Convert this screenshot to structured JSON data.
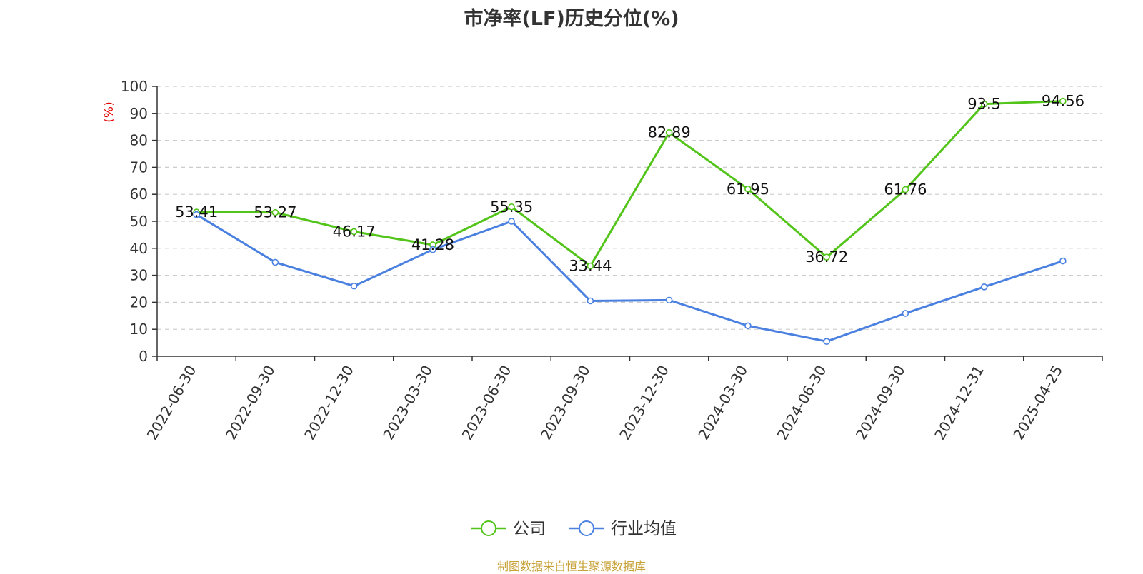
{
  "chart_data": {
    "type": "line",
    "title": "市净率(LF)历史分位(%)",
    "ylabel": "(%)",
    "ylim": [
      0,
      100
    ],
    "yticks": [
      0,
      10,
      20,
      30,
      40,
      50,
      60,
      70,
      80,
      90,
      100
    ],
    "grid": true,
    "legend_position": "bottom-center",
    "categories": [
      "2022-06-30",
      "2022-09-30",
      "2022-12-30",
      "2023-03-30",
      "2023-06-30",
      "2023-09-30",
      "2023-12-30",
      "2024-03-30",
      "2024-06-30",
      "2024-09-30",
      "2024-12-31",
      "2025-04-25"
    ],
    "series": [
      {
        "name": "公司",
        "color": "#52c41a",
        "show_labels": true,
        "values": [
          53.41,
          53.27,
          46.17,
          41.28,
          55.35,
          33.44,
          82.89,
          61.95,
          36.72,
          61.76,
          93.5,
          94.56
        ]
      },
      {
        "name": "行业均值",
        "color": "#4a80e0",
        "show_labels": false,
        "values": [
          52.5,
          34.8,
          26.0,
          39.5,
          50.0,
          20.5,
          20.8,
          11.3,
          5.5,
          15.9,
          25.7,
          35.3
        ]
      }
    ]
  },
  "source_note": "制图数据来自恒生聚源数据库"
}
